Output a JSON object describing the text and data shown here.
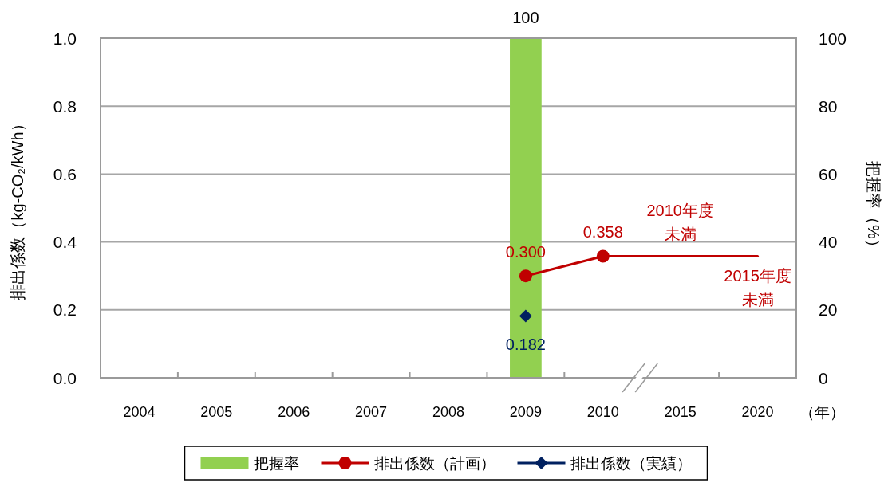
{
  "chart_data": {
    "type": "bar",
    "categories": [
      "2004",
      "2005",
      "2006",
      "2007",
      "2008",
      "2009",
      "2010",
      "2015",
      "2020"
    ],
    "xlabel": "（年）",
    "ylabel": "排出係数（kg-CO₂/kWh）",
    "y2label": "把握率（%）",
    "ylim": [
      0,
      1
    ],
    "yticks": [
      {
        "value": 0,
        "label": "0.0"
      },
      {
        "value": 0.2,
        "label": "0.2"
      },
      {
        "value": 0.4,
        "label": "0.4"
      },
      {
        "value": 0.6,
        "label": "0.6"
      },
      {
        "value": 0.8,
        "label": "0.8"
      },
      {
        "value": 1,
        "label": "1.0"
      }
    ],
    "y2lim": [
      0,
      100
    ],
    "y2ticks": [
      0,
      20,
      40,
      60,
      80,
      100
    ],
    "grid": "y",
    "legend": "bottom",
    "series": [
      {
        "name": "把握率",
        "axis": "y2",
        "color": "#92d050",
        "values": [
          null,
          null,
          null,
          null,
          null,
          100,
          null,
          null,
          null
        ],
        "value_labels": [
          null,
          null,
          null,
          null,
          null,
          "100",
          null,
          null,
          null
        ]
      },
      {
        "name": "排出係数（計画）",
        "type": "line",
        "color": "#c00000",
        "marker": "circle",
        "values": [
          null,
          null,
          null,
          null,
          null,
          0.3,
          0.358,
          null,
          null
        ],
        "value_labels": [
          null,
          null,
          null,
          null,
          null,
          "0.300",
          "0.358",
          null,
          null
        ]
      },
      {
        "type": "line",
        "color": "#c00000",
        "marker": "none",
        "values": [
          null,
          null,
          null,
          null,
          null,
          null,
          0.358,
          0.358,
          0.358
        ]
      },
      {
        "name": "排出係数（実績）",
        "type": "line",
        "color": "#002060",
        "marker": "diamond",
        "values": [
          null,
          null,
          null,
          null,
          null,
          0.182,
          null,
          null,
          null
        ],
        "value_labels": [
          null,
          null,
          null,
          null,
          null,
          "0.182",
          null,
          null,
          null
        ]
      }
    ],
    "annotations": [
      {
        "text": "2010年度未満",
        "x": "2015",
        "y": 0.358
      },
      {
        "text": "2015年度未満",
        "x": "2020",
        "y": 0.358
      }
    ]
  }
}
